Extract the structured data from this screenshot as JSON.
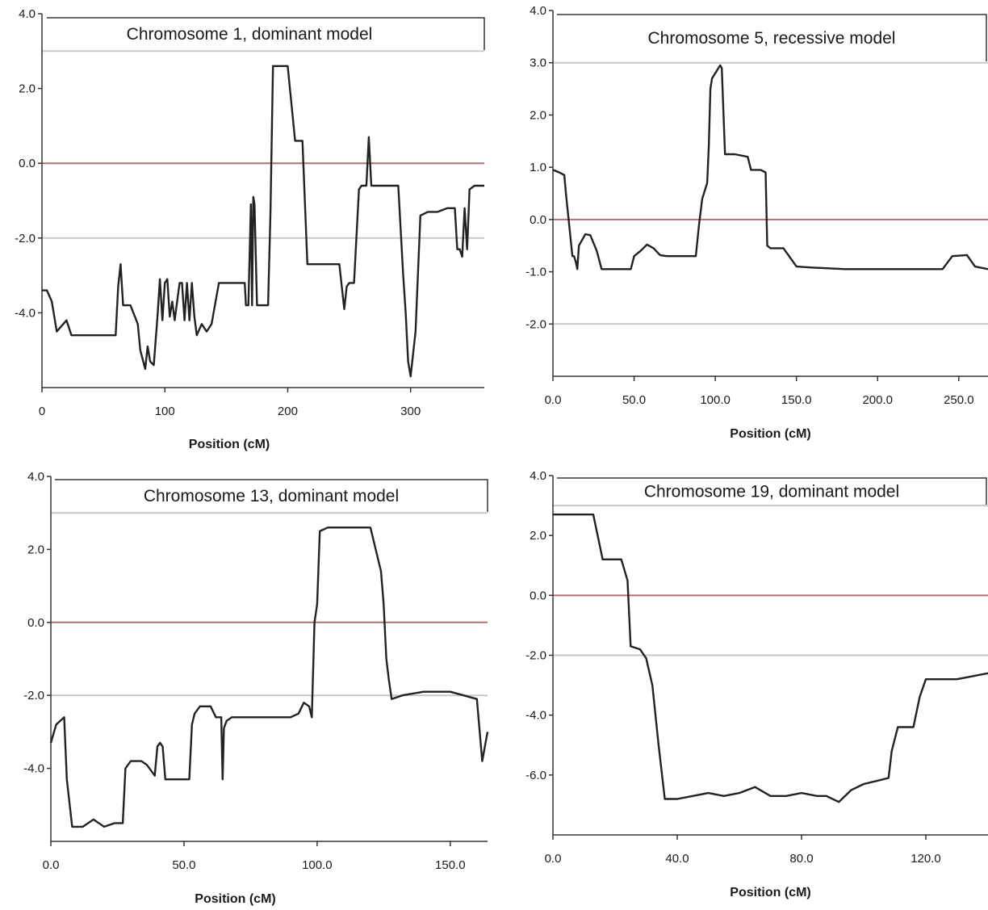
{
  "colors": {
    "curve": "#222222",
    "axis": "#333333",
    "zero_line": "#b07070",
    "threshold_line": "#c8c8c8",
    "title_border": "#333333"
  },
  "chart_data": [
    {
      "type": "line",
      "title": "Chromosome 1, dominant model",
      "xlabel": "Position (cM)",
      "ylabel": "",
      "xlim": [
        0,
        360
      ],
      "ylim": [
        -6,
        4
      ],
      "xticks": [
        0,
        100,
        200,
        300
      ],
      "xtick_labels": [
        "0",
        "100",
        "200",
        "300"
      ],
      "yticks": [
        4,
        2,
        0,
        -2,
        -4
      ],
      "ytick_labels": [
        "4.0",
        "2.0",
        "0.0",
        "-2.0",
        "-4.0"
      ],
      "reference_lines": [
        3,
        0,
        -2
      ],
      "series": [
        {
          "x": [
            0,
            4,
            8,
            12,
            20,
            24,
            30,
            40,
            50,
            60,
            62,
            64,
            66,
            72,
            78,
            80,
            84,
            86,
            88,
            91,
            94,
            96,
            98,
            100,
            102,
            104,
            106,
            108,
            112,
            114,
            116,
            118,
            120,
            122,
            124,
            126,
            130,
            134,
            138,
            144,
            148,
            165,
            166,
            168,
            170,
            171,
            172,
            173,
            175,
            176,
            184,
            186,
            188,
            190,
            200,
            206,
            212,
            216,
            220,
            228,
            242,
            246,
            248,
            250,
            254,
            258,
            260,
            264,
            266,
            268,
            270,
            280,
            290,
            294,
            296,
            298,
            300,
            304,
            308,
            314,
            322,
            330,
            336,
            338,
            340,
            342,
            344,
            346,
            348,
            352,
            356,
            360
          ],
          "y": [
            -3.4,
            -3.4,
            -3.7,
            -4.5,
            -4.2,
            -4.6,
            -4.6,
            -4.6,
            -4.6,
            -4.6,
            -3.3,
            -2.7,
            -3.8,
            -3.8,
            -4.3,
            -5.0,
            -5.5,
            -4.9,
            -5.3,
            -5.4,
            -4.1,
            -3.1,
            -4.2,
            -3.2,
            -3.1,
            -4.1,
            -3.7,
            -4.2,
            -3.2,
            -3.2,
            -4.2,
            -3.2,
            -4.2,
            -3.2,
            -4.1,
            -4.6,
            -4.3,
            -4.5,
            -4.3,
            -3.2,
            -3.2,
            -3.2,
            -3.8,
            -3.8,
            -1.1,
            -3.8,
            -0.9,
            -1.1,
            -3.8,
            -3.8,
            -3.8,
            -1.3,
            2.6,
            2.6,
            2.6,
            0.6,
            0.6,
            -2.7,
            -2.7,
            -2.7,
            -2.7,
            -3.9,
            -3.3,
            -3.2,
            -3.2,
            -0.7,
            -0.6,
            -0.6,
            0.7,
            -0.6,
            -0.6,
            -0.6,
            -0.6,
            -3.0,
            -4.0,
            -5.3,
            -5.7,
            -4.5,
            -1.4,
            -1.3,
            -1.3,
            -1.2,
            -1.2,
            -2.3,
            -2.3,
            -2.5,
            -1.2,
            -2.3,
            -0.7,
            -0.6,
            -0.6,
            -0.6
          ]
        }
      ]
    },
    {
      "type": "line",
      "title": "Chromosome 5, recessive model",
      "xlabel": "Position (cM)",
      "ylabel": "",
      "xlim": [
        0,
        268
      ],
      "ylim": [
        -3,
        4
      ],
      "xticks": [
        0,
        50,
        100,
        150,
        200,
        250
      ],
      "xtick_labels": [
        "0.0",
        "50.0",
        "100.0",
        "150.0",
        "200.0",
        "250.0"
      ],
      "yticks": [
        4,
        3,
        2,
        1,
        0,
        -1,
        -2
      ],
      "ytick_labels": [
        "4.0",
        "3.0",
        "2.0",
        "1.0",
        "0.0",
        "-1.0",
        "-2.0"
      ],
      "reference_lines": [
        3,
        0,
        -2
      ],
      "series": [
        {
          "x": [
            0,
            4,
            7,
            8,
            10,
            12,
            13,
            14,
            15,
            16,
            20,
            23,
            27,
            30,
            40,
            48,
            50,
            54,
            58,
            62,
            66,
            70,
            74,
            88,
            90,
            92,
            95,
            96,
            97,
            98,
            103,
            104,
            106,
            112,
            120,
            122,
            128,
            131,
            132,
            134,
            142,
            150,
            160,
            180,
            200,
            230,
            240,
            246,
            255,
            260,
            268
          ],
          "y": [
            0.95,
            0.9,
            0.85,
            0.5,
            -0.1,
            -0.7,
            -0.7,
            -0.8,
            -0.95,
            -0.5,
            -0.28,
            -0.3,
            -0.6,
            -0.95,
            -0.95,
            -0.95,
            -0.7,
            -0.6,
            -0.48,
            -0.55,
            -0.68,
            -0.7,
            -0.7,
            -0.7,
            -0.1,
            0.4,
            0.7,
            1.4,
            2.5,
            2.7,
            2.95,
            2.9,
            1.25,
            1.25,
            1.2,
            0.95,
            0.95,
            0.9,
            -0.5,
            -0.55,
            -0.55,
            -0.9,
            -0.92,
            -0.95,
            -0.95,
            -0.95,
            -0.95,
            -0.7,
            -0.68,
            -0.9,
            -0.95
          ]
        }
      ]
    },
    {
      "type": "line",
      "title": "Chromosome 13, dominant model",
      "xlabel": "Position (cM)",
      "ylabel": "",
      "xlim": [
        0,
        164
      ],
      "ylim": [
        -6,
        4
      ],
      "xticks": [
        0,
        50,
        100,
        150
      ],
      "xtick_labels": [
        "0.0",
        "50.0",
        "100.0",
        "150.0"
      ],
      "yticks": [
        4,
        2,
        0,
        -2,
        -4
      ],
      "ytick_labels": [
        "4.0",
        "2.0",
        "0.0",
        "-2.0",
        "-4.0"
      ],
      "reference_lines": [
        3,
        0,
        -2
      ],
      "series": [
        {
          "x": [
            0,
            2,
            5,
            6,
            8,
            12,
            16,
            20,
            24,
            27,
            28,
            30,
            34,
            36,
            39,
            40,
            41,
            42,
            43,
            52,
            53,
            54,
            56,
            60,
            62,
            64,
            64.5,
            65,
            66,
            68,
            72,
            90,
            93,
            95,
            97,
            98,
            99,
            100,
            101,
            104,
            110,
            120,
            124,
            125,
            126,
            127,
            128,
            132,
            140,
            150,
            160,
            162,
            164
          ],
          "y": [
            -3.3,
            -2.8,
            -2.6,
            -4.3,
            -5.6,
            -5.6,
            -5.4,
            -5.6,
            -5.5,
            -5.5,
            -4.0,
            -3.8,
            -3.8,
            -3.9,
            -4.2,
            -3.4,
            -3.3,
            -3.4,
            -4.3,
            -4.3,
            -2.8,
            -2.5,
            -2.3,
            -2.3,
            -2.6,
            -2.6,
            -4.3,
            -2.9,
            -2.7,
            -2.6,
            -2.6,
            -2.6,
            -2.5,
            -2.2,
            -2.3,
            -2.6,
            0.0,
            0.5,
            2.5,
            2.6,
            2.6,
            2.6,
            1.4,
            0.5,
            -1.0,
            -1.6,
            -2.1,
            -2.0,
            -1.9,
            -1.9,
            -2.1,
            -3.8,
            -3.0
          ]
        }
      ]
    },
    {
      "type": "line",
      "title": "Chromosome 19, dominant model",
      "xlabel": "Position (cM)",
      "ylabel": "",
      "xlim": [
        0,
        140
      ],
      "ylim": [
        -8,
        4
      ],
      "xticks": [
        0,
        40,
        80,
        120
      ],
      "xtick_labels": [
        "0.0",
        "40.0",
        "80.0",
        "120.0"
      ],
      "yticks": [
        4,
        2,
        0,
        -2,
        -4,
        -6
      ],
      "ytick_labels": [
        "4.0",
        "2.0",
        "0.0",
        "-2.0",
        "-4.0",
        "-6.0"
      ],
      "reference_lines": [
        3,
        0,
        -2
      ],
      "series": [
        {
          "x": [
            0,
            13,
            16,
            22,
            24,
            25,
            28,
            30,
            32,
            34,
            36,
            40,
            45,
            50,
            55,
            60,
            65,
            70,
            75,
            80,
            85,
            88,
            92,
            96,
            100,
            104,
            108,
            109,
            111,
            116,
            118,
            120,
            124,
            130,
            140
          ],
          "y": [
            2.7,
            2.7,
            1.2,
            1.2,
            0.5,
            -1.7,
            -1.8,
            -2.1,
            -3.0,
            -5.0,
            -6.8,
            -6.8,
            -6.7,
            -6.6,
            -6.7,
            -6.6,
            -6.4,
            -6.7,
            -6.7,
            -6.6,
            -6.7,
            -6.7,
            -6.9,
            -6.5,
            -6.3,
            -6.2,
            -6.1,
            -5.2,
            -4.4,
            -4.4,
            -3.4,
            -2.8,
            -2.8,
            -2.8,
            -2.6
          ]
        }
      ]
    }
  ]
}
